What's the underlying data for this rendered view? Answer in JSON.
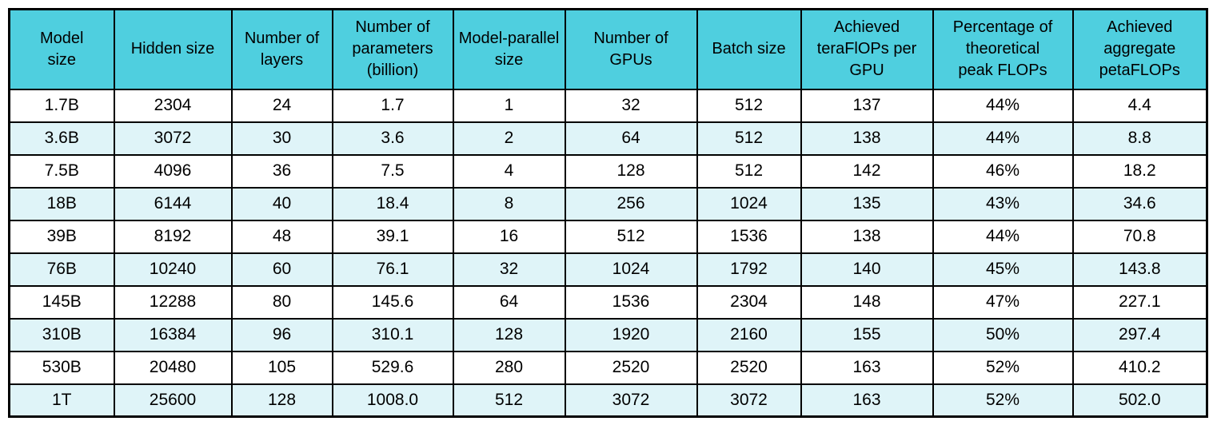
{
  "colors": {
    "header_bg": "#4FCFDF",
    "row_alt_bg": "#DFF4F8",
    "row_bg": "#FFFFFF",
    "border": "#000000",
    "text": "#000000"
  },
  "chart_data": {
    "type": "table",
    "columns": [
      {
        "label": "Model size",
        "lines": [
          "Model",
          "size"
        ]
      },
      {
        "label": "Hidden size",
        "lines": [
          "Hidden size"
        ]
      },
      {
        "label": "Number of layers",
        "lines": [
          "Number of",
          "layers"
        ]
      },
      {
        "label": "Number of parameters (billion)",
        "lines": [
          "Number of",
          "parameters",
          "(billion)"
        ]
      },
      {
        "label": "Model-parallel size",
        "lines": [
          "Model-parallel",
          "size"
        ]
      },
      {
        "label": "Number of GPUs",
        "lines": [
          "Number of",
          "GPUs"
        ]
      },
      {
        "label": "Batch size",
        "lines": [
          "Batch size"
        ]
      },
      {
        "label": "Achieved teraFlOPs per GPU",
        "lines": [
          "Achieved",
          "teraFlOPs per",
          "GPU"
        ]
      },
      {
        "label": "Percentage of theoretical peak FLOPs",
        "lines": [
          "Percentage of",
          "theoretical",
          "peak FLOPs"
        ]
      },
      {
        "label": "Achieved aggregate petaFLOPs",
        "lines": [
          "Achieved",
          "aggregate",
          "petaFLOPs"
        ]
      }
    ],
    "rows": [
      [
        "1.7B",
        "2304",
        "24",
        "1.7",
        "1",
        "32",
        "512",
        "137",
        "44%",
        "4.4"
      ],
      [
        "3.6B",
        "3072",
        "30",
        "3.6",
        "2",
        "64",
        "512",
        "138",
        "44%",
        "8.8"
      ],
      [
        "7.5B",
        "4096",
        "36",
        "7.5",
        "4",
        "128",
        "512",
        "142",
        "46%",
        "18.2"
      ],
      [
        "18B",
        "6144",
        "40",
        "18.4",
        "8",
        "256",
        "1024",
        "135",
        "43%",
        "34.6"
      ],
      [
        "39B",
        "8192",
        "48",
        "39.1",
        "16",
        "512",
        "1536",
        "138",
        "44%",
        "70.8"
      ],
      [
        "76B",
        "10240",
        "60",
        "76.1",
        "32",
        "1024",
        "1792",
        "140",
        "45%",
        "143.8"
      ],
      [
        "145B",
        "12288",
        "80",
        "145.6",
        "64",
        "1536",
        "2304",
        "148",
        "47%",
        "227.1"
      ],
      [
        "310B",
        "16384",
        "96",
        "310.1",
        "128",
        "1920",
        "2160",
        "155",
        "50%",
        "297.4"
      ],
      [
        "530B",
        "20480",
        "105",
        "529.6",
        "280",
        "2520",
        "2520",
        "163",
        "52%",
        "410.2"
      ],
      [
        "1T",
        "25600",
        "128",
        "1008.0",
        "512",
        "3072",
        "3072",
        "163",
        "52%",
        "502.0"
      ]
    ]
  }
}
